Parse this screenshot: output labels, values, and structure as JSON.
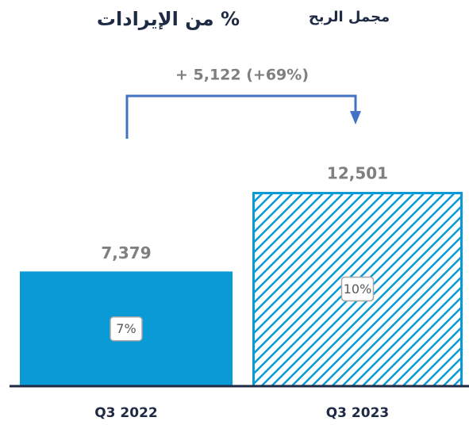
{
  "chart_data": {
    "type": "bar",
    "title": "مجمل الربح",
    "subtitle": "% من الإيرادات",
    "annotation": "+ 5,122 (+69%)",
    "categories": [
      "Q3 2022",
      "Q3 2023"
    ],
    "values": [
      7379,
      12501
    ],
    "value_labels": [
      "7,379",
      "12,501"
    ],
    "shares": [
      7,
      10
    ],
    "share_labels": [
      "7%",
      "10%"
    ],
    "colors": [
      "#0a9ad6",
      "#0a9ad6"
    ],
    "hatched": [
      false,
      true
    ]
  }
}
